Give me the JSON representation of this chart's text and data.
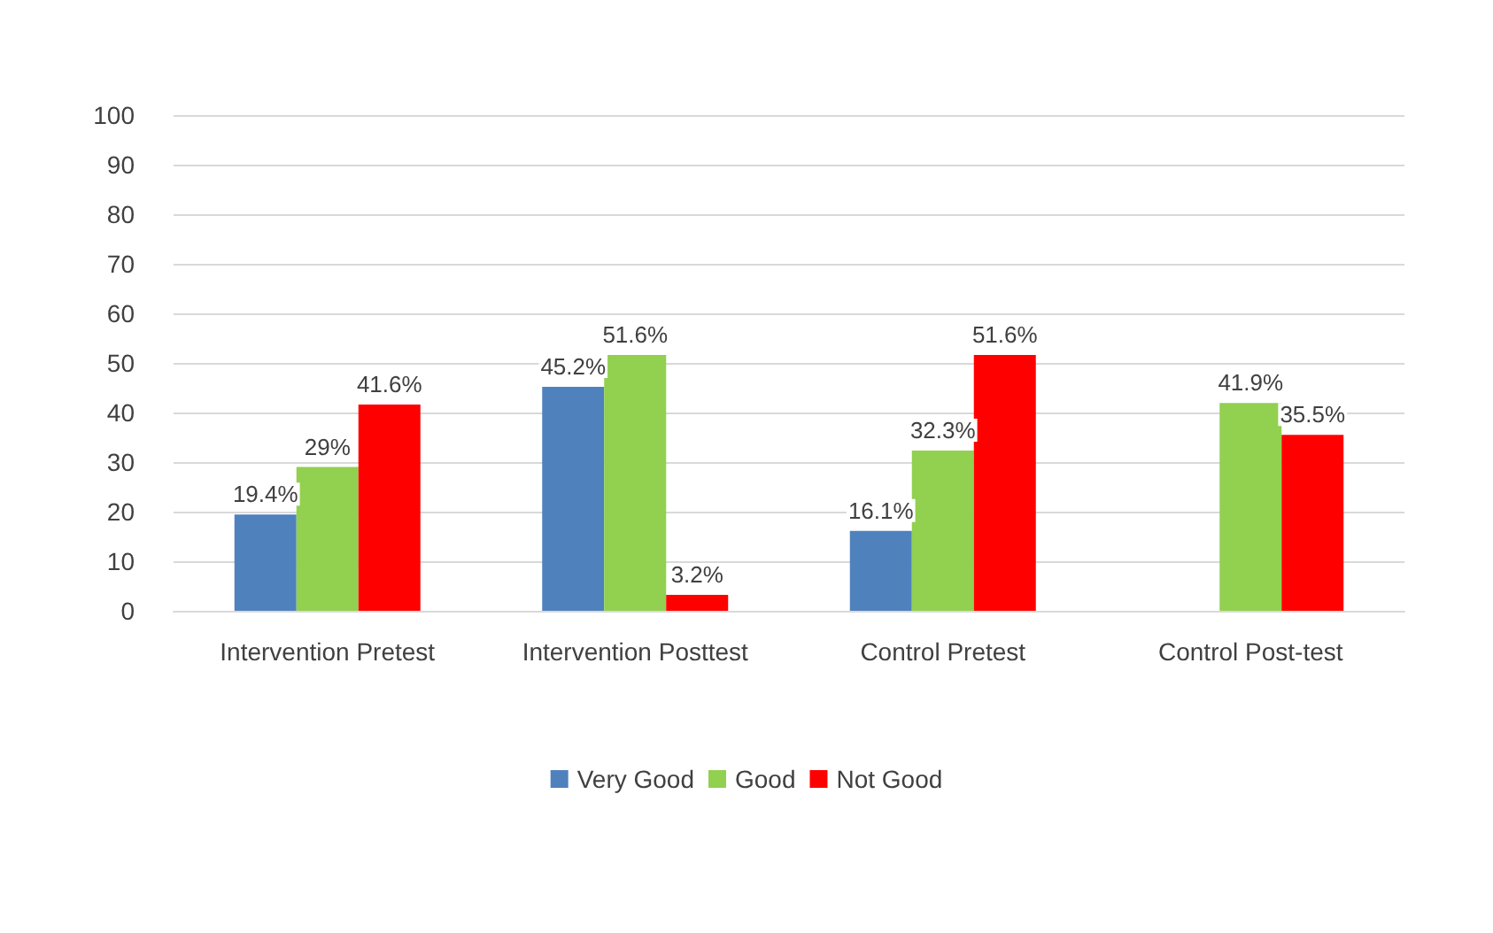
{
  "chart_data": {
    "type": "bar",
    "categories": [
      "Intervention Pretest",
      "Intervention Posttest",
      "Control Pretest",
      "Control Post-test"
    ],
    "series": [
      {
        "name": "Very Good",
        "color": "#4f81bd",
        "values": [
          19.4,
          45.2,
          16.1,
          null
        ],
        "value_labels": [
          "19.4%",
          "45.2%",
          "16.1%",
          null
        ]
      },
      {
        "name": "Good",
        "color": "#92d050",
        "values": [
          29,
          51.6,
          32.3,
          41.9
        ],
        "value_labels": [
          "29%",
          "51.6%",
          "32.3%",
          "41.9%"
        ]
      },
      {
        "name": "Not Good",
        "color": "#ff0000",
        "values": [
          41.6,
          3.2,
          51.6,
          35.5
        ],
        "value_labels": [
          "41.6%",
          "3.2%",
          "51.6%",
          "35.5%"
        ]
      }
    ],
    "ylim": [
      0,
      100
    ],
    "yticks": [
      0,
      10,
      20,
      30,
      40,
      50,
      60,
      70,
      80,
      90,
      100
    ],
    "grid": "y",
    "legend": "bottom"
  }
}
